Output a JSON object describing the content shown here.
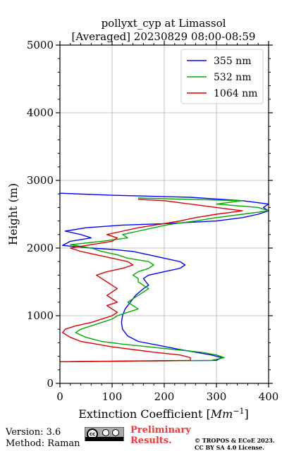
{
  "chart_data": {
    "type": "line",
    "title": "pollyxt_cyp at Limassol",
    "subtitle": "[Averaged] 20230829 08:00-08:59",
    "xlabel": "Extinction Coefficient [Mm⁻¹]",
    "xlabel_main": "Extinction Coefficient [",
    "xlabel_unit": "Mm",
    "xlabel_exp": "−1",
    "xlabel_close": "]",
    "ylabel": "Height (m)",
    "xlim": [
      0,
      400
    ],
    "ylim": [
      0,
      5000
    ],
    "xticks": [
      "0",
      "100",
      "200",
      "300",
      "400"
    ],
    "yticks": [
      "0",
      "1000",
      "2000",
      "3000",
      "4000",
      "5000"
    ],
    "grid": true,
    "legend_position": "top-right",
    "series": [
      {
        "name": "355 nm",
        "color": "#0000ff",
        "points": [
          [
            0,
            320
          ],
          [
            300,
            340
          ],
          [
            310,
            380
          ],
          [
            290,
            420
          ],
          [
            260,
            460
          ],
          [
            230,
            500
          ],
          [
            190,
            560
          ],
          [
            150,
            620
          ],
          [
            130,
            700
          ],
          [
            120,
            800
          ],
          [
            118,
            900
          ],
          [
            120,
            1000
          ],
          [
            125,
            1100
          ],
          [
            135,
            1200
          ],
          [
            145,
            1300
          ],
          [
            160,
            1400
          ],
          [
            170,
            1450
          ],
          [
            165,
            1500
          ],
          [
            160,
            1550
          ],
          [
            170,
            1600
          ],
          [
            200,
            1650
          ],
          [
            230,
            1700
          ],
          [
            240,
            1750
          ],
          [
            230,
            1800
          ],
          [
            200,
            1850
          ],
          [
            170,
            1900
          ],
          [
            140,
            1950
          ],
          [
            100,
            1980
          ],
          [
            60,
            2000
          ],
          [
            30,
            2020
          ],
          [
            5,
            2040
          ],
          [
            20,
            2100
          ],
          [
            60,
            2150
          ],
          [
            40,
            2200
          ],
          [
            10,
            2250
          ],
          [
            50,
            2300
          ],
          [
            120,
            2340
          ],
          [
            200,
            2360
          ],
          [
            300,
            2400
          ],
          [
            350,
            2450
          ],
          [
            380,
            2500
          ],
          [
            400,
            2550
          ],
          [
            390,
            2600
          ],
          [
            400,
            2650
          ],
          [
            350,
            2700
          ],
          [
            250,
            2750
          ],
          [
            100,
            2780
          ],
          [
            0,
            2810
          ]
        ]
      },
      {
        "name": "532 nm",
        "color": "#00aa00",
        "points": [
          [
            0,
            320
          ],
          [
            290,
            340
          ],
          [
            315,
            380
          ],
          [
            300,
            420
          ],
          [
            270,
            460
          ],
          [
            220,
            500
          ],
          [
            170,
            540
          ],
          [
            120,
            580
          ],
          [
            80,
            620
          ],
          [
            50,
            680
          ],
          [
            30,
            750
          ],
          [
            40,
            800
          ],
          [
            60,
            850
          ],
          [
            80,
            900
          ],
          [
            100,
            950
          ],
          [
            110,
            1000
          ],
          [
            130,
            1050
          ],
          [
            150,
            1100
          ],
          [
            140,
            1150
          ],
          [
            130,
            1200
          ],
          [
            140,
            1250
          ],
          [
            150,
            1300
          ],
          [
            160,
            1350
          ],
          [
            170,
            1400
          ],
          [
            160,
            1450
          ],
          [
            150,
            1500
          ],
          [
            150,
            1550
          ],
          [
            140,
            1600
          ],
          [
            150,
            1650
          ],
          [
            170,
            1700
          ],
          [
            180,
            1750
          ],
          [
            170,
            1800
          ],
          [
            130,
            1850
          ],
          [
            110,
            1900
          ],
          [
            80,
            1950
          ],
          [
            60,
            2000
          ],
          [
            20,
            2050
          ],
          [
            80,
            2100
          ],
          [
            130,
            2150
          ],
          [
            120,
            2200
          ],
          [
            150,
            2250
          ],
          [
            180,
            2300
          ],
          [
            210,
            2350
          ],
          [
            260,
            2400
          ],
          [
            300,
            2450
          ],
          [
            350,
            2500
          ],
          [
            400,
            2550
          ],
          [
            380,
            2600
          ],
          [
            300,
            2650
          ],
          [
            350,
            2700
          ],
          [
            250,
            2720
          ],
          [
            150,
            2740
          ]
        ]
      },
      {
        "name": "1064 nm",
        "color": "#dd0000",
        "points": [
          [
            0,
            320
          ],
          [
            250,
            340
          ],
          [
            250,
            380
          ],
          [
            230,
            420
          ],
          [
            180,
            460
          ],
          [
            140,
            500
          ],
          [
            100,
            540
          ],
          [
            70,
            580
          ],
          [
            40,
            620
          ],
          [
            20,
            680
          ],
          [
            5,
            750
          ],
          [
            10,
            800
          ],
          [
            30,
            850
          ],
          [
            60,
            900
          ],
          [
            80,
            950
          ],
          [
            100,
            1000
          ],
          [
            110,
            1050
          ],
          [
            100,
            1100
          ],
          [
            90,
            1150
          ],
          [
            110,
            1200
          ],
          [
            100,
            1250
          ],
          [
            90,
            1300
          ],
          [
            100,
            1350
          ],
          [
            110,
            1400
          ],
          [
            100,
            1450
          ],
          [
            90,
            1500
          ],
          [
            80,
            1550
          ],
          [
            70,
            1600
          ],
          [
            90,
            1650
          ],
          [
            120,
            1700
          ],
          [
            140,
            1750
          ],
          [
            130,
            1800
          ],
          [
            100,
            1850
          ],
          [
            70,
            1900
          ],
          [
            40,
            1950
          ],
          [
            20,
            2000
          ],
          [
            60,
            2050
          ],
          [
            100,
            2100
          ],
          [
            110,
            2150
          ],
          [
            90,
            2200
          ],
          [
            120,
            2250
          ],
          [
            150,
            2300
          ],
          [
            190,
            2350
          ],
          [
            230,
            2400
          ],
          [
            260,
            2450
          ],
          [
            300,
            2500
          ],
          [
            350,
            2550
          ],
          [
            300,
            2600
          ],
          [
            250,
            2650
          ],
          [
            200,
            2700
          ],
          [
            150,
            2720
          ]
        ]
      }
    ]
  },
  "footer": {
    "version": "Version: 3.6",
    "method": "Method: Raman",
    "license_badge_text": "BY SA",
    "preliminary_line1": "Preliminary",
    "preliminary_line2": "Results.",
    "copyright_line1": "© TROPOS & ECoE 2023.",
    "copyright_line2": "CC BY SA 4.0 License."
  }
}
